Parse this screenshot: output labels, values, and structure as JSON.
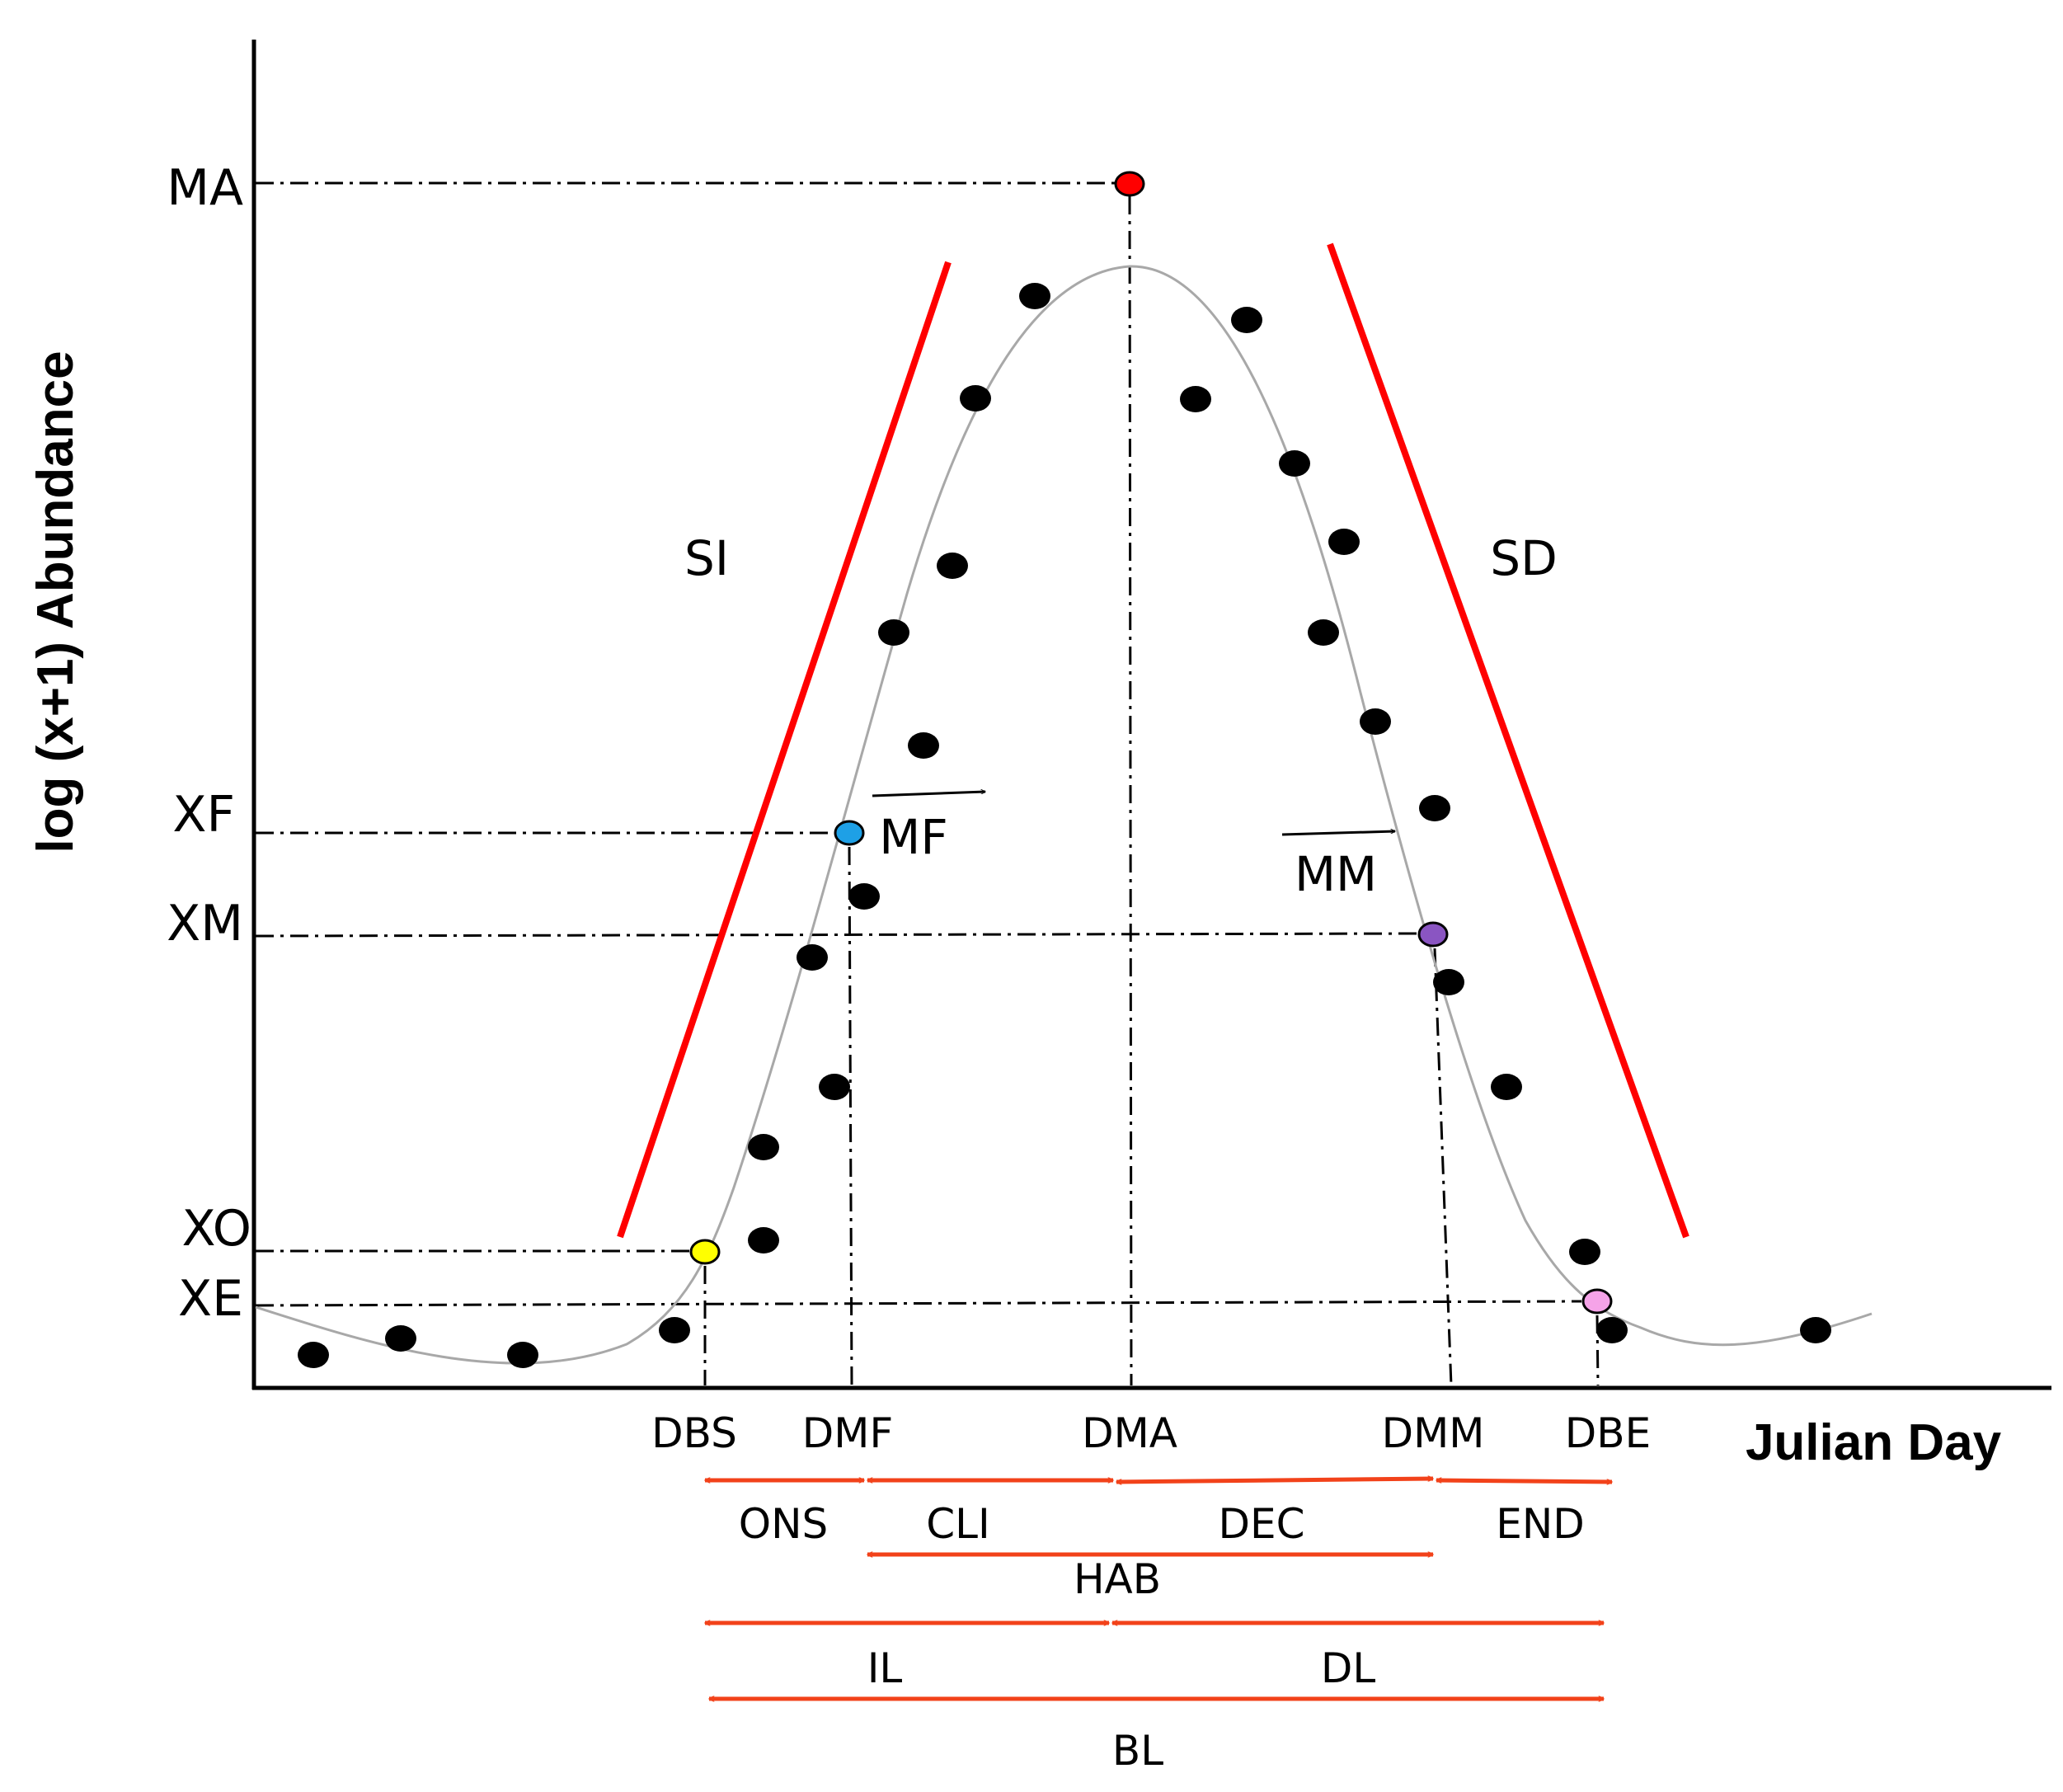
{
  "axis_title_y": "log (x+1) Abundance",
  "axis_title_x": "Julian Day",
  "y_levels": [
    "MA",
    "XF",
    "XM",
    "XO",
    "XE"
  ],
  "x_dates": [
    "DBS",
    "DMF",
    "DMA",
    "DMM",
    "DBE"
  ],
  "slopes": {
    "increase": "SI",
    "decrease": "SD"
  },
  "moves": {
    "first": "MF",
    "main": "MM"
  },
  "phases": [
    "ONS",
    "CLI",
    "DEC",
    "END"
  ],
  "spans": {
    "habitat": "HAB",
    "increase_length": "IL",
    "decrease_length": "DL",
    "bloom_length": "BL"
  },
  "markers": {
    "peak": "#ff0000",
    "first": "#1ea0e6",
    "main": "#8a55c2",
    "onset": "#ffff00",
    "end": "#f5a3e8"
  }
}
